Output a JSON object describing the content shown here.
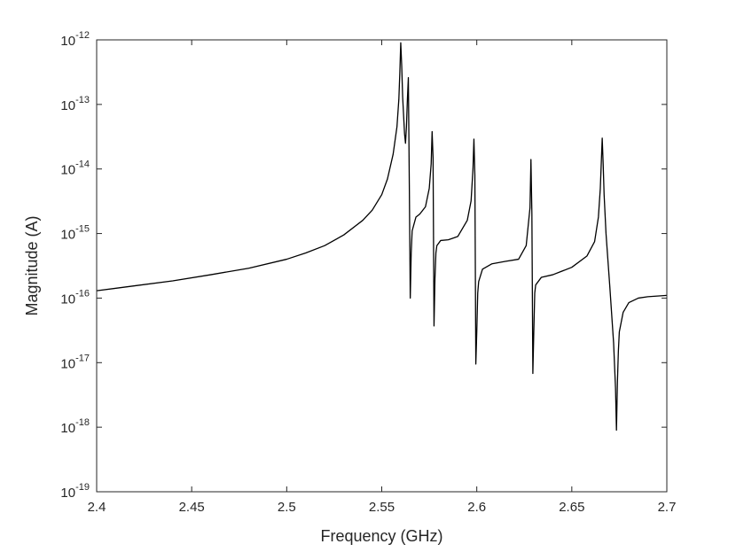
{
  "chart_data": {
    "type": "line",
    "title": "",
    "xlabel": "Frequency (GHz)",
    "ylabel": "Magnitude (A)",
    "xlim": [
      2.4,
      2.7
    ],
    "ylim": [
      1e-19,
      1e-12
    ],
    "yscale": "log",
    "grid": false,
    "box": true,
    "line_color": "#000000",
    "x_ticks": [
      2.4,
      2.45,
      2.5,
      2.55,
      2.6,
      2.65,
      2.7
    ],
    "x_tick_labels": [
      "2.4",
      "2.45",
      "2.5",
      "2.55",
      "2.6",
      "2.65",
      "2.7"
    ],
    "y_tick_exponents": [
      -19,
      -18,
      -17,
      -16,
      -15,
      -14,
      -13,
      -12
    ],
    "y_tick_base": "10",
    "series": [
      {
        "x": [
          2.4,
          2.42,
          2.44,
          2.46,
          2.48,
          2.5,
          2.51,
          2.52,
          2.53,
          2.54,
          2.545,
          2.55,
          2.553,
          2.556,
          2.558,
          2.559,
          2.5595,
          2.56,
          2.5605,
          2.561,
          2.562,
          2.5625,
          2.563,
          2.5635,
          2.564,
          2.5645,
          2.565,
          2.5655,
          2.566,
          2.568,
          2.57,
          2.573,
          2.575,
          2.576,
          2.5765,
          2.577,
          2.5775,
          2.578,
          2.5785,
          2.579,
          2.581,
          2.585,
          2.59,
          2.595,
          2.597,
          2.598,
          2.5985,
          2.599,
          2.5995,
          2.6,
          2.6005,
          2.601,
          2.603,
          2.608,
          2.615,
          2.622,
          2.626,
          2.628,
          2.6285,
          2.629,
          2.6295,
          2.63,
          2.6305,
          2.631,
          2.634,
          2.64,
          2.65,
          2.658,
          2.662,
          2.664,
          2.665,
          2.666,
          2.6665,
          2.667,
          2.6675,
          2.668,
          2.67,
          2.672,
          2.673,
          2.6735,
          2.674,
          2.6745,
          2.675,
          2.677,
          2.68,
          2.685,
          2.69,
          2.7
        ],
        "y": [
          1.3e-16,
          1.55e-16,
          1.85e-16,
          2.3e-16,
          2.9e-16,
          4e-16,
          5e-16,
          6.5e-16,
          9.5e-16,
          1.6e-15,
          2.3e-15,
          4e-15,
          7e-15,
          1.7e-14,
          4.5e-14,
          1.2e-13,
          3e-13,
          9e-13,
          4e-13,
          1.3e-13,
          3.5e-14,
          2.5e-14,
          4.5e-14,
          1.2e-13,
          2.6e-13,
          6e-15,
          1e-16,
          5e-16,
          1.1e-15,
          1.8e-15,
          2e-15,
          2.6e-15,
          5e-15,
          1.2e-14,
          3.8e-14,
          1.5e-14,
          3.7e-17,
          2e-16,
          5e-16,
          6.5e-16,
          7.8e-16,
          8e-16,
          9e-16,
          1.6e-15,
          3.2e-15,
          1e-14,
          2.9e-14,
          8e-15,
          9.5e-18,
          3e-17,
          1.2e-16,
          1.8e-16,
          2.8e-16,
          3.4e-16,
          3.7e-16,
          4e-16,
          6.5e-16,
          2.5e-15,
          1.4e-14,
          2e-15,
          6.8e-18,
          3e-17,
          1.2e-16,
          1.6e-16,
          2.1e-16,
          2.3e-16,
          3e-16,
          4.5e-16,
          7.5e-16,
          1.8e-15,
          5e-15,
          3e-14,
          1.2e-14,
          4e-15,
          2e-15,
          1e-15,
          1.5e-16,
          2e-17,
          4e-18,
          9e-19,
          5e-18,
          1.5e-17,
          3e-17,
          6e-17,
          8.5e-17,
          1e-16,
          1.05e-16,
          1.1e-16
        ]
      }
    ]
  }
}
